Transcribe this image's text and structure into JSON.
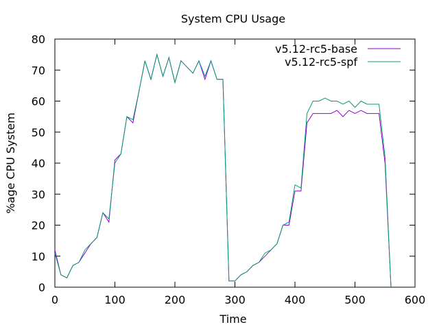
{
  "chart_data": {
    "type": "line",
    "title": "System CPU Usage",
    "xlabel": "Time",
    "ylabel": "%age CPU System",
    "xlim": [
      0,
      600
    ],
    "ylim": [
      0,
      80
    ],
    "xticks": [
      0,
      100,
      200,
      300,
      400,
      500,
      600
    ],
    "yticks": [
      0,
      10,
      20,
      30,
      40,
      50,
      60,
      70,
      80
    ],
    "grid": false,
    "legend_position": "top-right",
    "series": [
      {
        "name": "v5.12-rc5-base",
        "color": "#9400d3",
        "points": [
          [
            0,
            12
          ],
          [
            10,
            4
          ],
          [
            20,
            3
          ],
          [
            30,
            7
          ],
          [
            40,
            8
          ],
          [
            50,
            11
          ],
          [
            60,
            14
          ],
          [
            70,
            16
          ],
          [
            80,
            24
          ],
          [
            90,
            21
          ],
          [
            100,
            41
          ],
          [
            110,
            43
          ],
          [
            120,
            55
          ],
          [
            130,
            53
          ],
          [
            140,
            63
          ],
          [
            150,
            73
          ],
          [
            160,
            67
          ],
          [
            170,
            75
          ],
          [
            180,
            68
          ],
          [
            190,
            74
          ],
          [
            200,
            66
          ],
          [
            210,
            73
          ],
          [
            220,
            71
          ],
          [
            230,
            69
          ],
          [
            240,
            73
          ],
          [
            250,
            67
          ],
          [
            260,
            73
          ],
          [
            270,
            67
          ],
          [
            280,
            67
          ],
          [
            290,
            2
          ],
          [
            300,
            2
          ],
          [
            310,
            4
          ],
          [
            320,
            5
          ],
          [
            330,
            7
          ],
          [
            340,
            8
          ],
          [
            350,
            10
          ],
          [
            360,
            12
          ],
          [
            370,
            14
          ],
          [
            380,
            20
          ],
          [
            390,
            20
          ],
          [
            400,
            31
          ],
          [
            410,
            31
          ],
          [
            420,
            53
          ],
          [
            430,
            56
          ],
          [
            440,
            56
          ],
          [
            450,
            56
          ],
          [
            460,
            56
          ],
          [
            470,
            57
          ],
          [
            480,
            55
          ],
          [
            490,
            57
          ],
          [
            500,
            56
          ],
          [
            510,
            57
          ],
          [
            520,
            56
          ],
          [
            530,
            56
          ],
          [
            540,
            56
          ],
          [
            550,
            40
          ],
          [
            560,
            0
          ]
        ]
      },
      {
        "name": "v5.12-rc5-spf",
        "color": "#009e73",
        "points": [
          [
            0,
            11
          ],
          [
            10,
            4
          ],
          [
            20,
            3
          ],
          [
            30,
            7
          ],
          [
            40,
            8
          ],
          [
            50,
            12
          ],
          [
            60,
            14
          ],
          [
            70,
            16
          ],
          [
            80,
            24
          ],
          [
            90,
            22
          ],
          [
            100,
            40
          ],
          [
            110,
            43
          ],
          [
            120,
            55
          ],
          [
            130,
            54
          ],
          [
            140,
            63
          ],
          [
            150,
            73
          ],
          [
            160,
            67
          ],
          [
            170,
            75
          ],
          [
            180,
            68
          ],
          [
            190,
            74
          ],
          [
            200,
            66
          ],
          [
            210,
            73
          ],
          [
            220,
            71
          ],
          [
            230,
            69
          ],
          [
            240,
            73
          ],
          [
            250,
            68
          ],
          [
            260,
            73
          ],
          [
            270,
            67
          ],
          [
            280,
            67
          ],
          [
            290,
            2
          ],
          [
            300,
            2
          ],
          [
            310,
            4
          ],
          [
            320,
            5
          ],
          [
            330,
            7
          ],
          [
            340,
            8
          ],
          [
            350,
            11
          ],
          [
            360,
            12
          ],
          [
            370,
            14
          ],
          [
            380,
            20
          ],
          [
            390,
            21
          ],
          [
            400,
            33
          ],
          [
            410,
            32
          ],
          [
            420,
            56
          ],
          [
            430,
            60
          ],
          [
            440,
            60
          ],
          [
            450,
            61
          ],
          [
            460,
            60
          ],
          [
            470,
            60
          ],
          [
            480,
            59
          ],
          [
            490,
            60
          ],
          [
            500,
            58
          ],
          [
            510,
            60
          ],
          [
            520,
            59
          ],
          [
            530,
            59
          ],
          [
            540,
            59
          ],
          [
            550,
            42
          ],
          [
            560,
            0
          ]
        ]
      }
    ]
  }
}
